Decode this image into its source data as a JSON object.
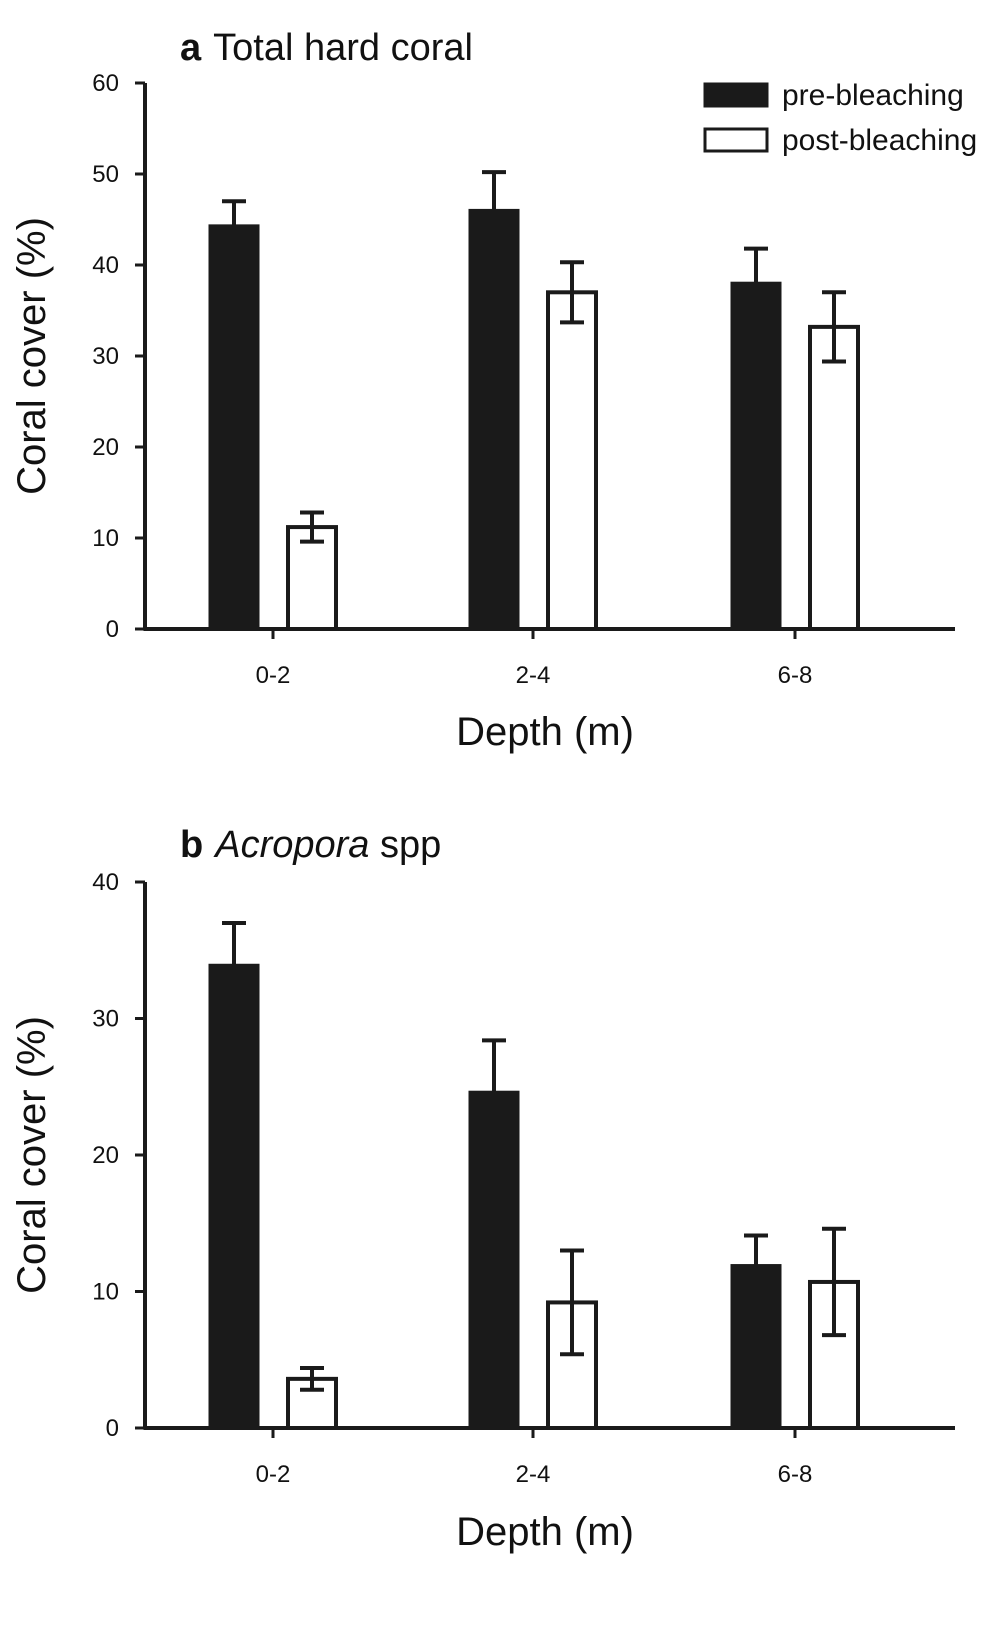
{
  "chart_data": [
    {
      "type": "bar",
      "panel_letter": "a",
      "title": "Total hard coral",
      "title_italic": "",
      "title_suffix": "",
      "xlabel": "Depth (m)",
      "ylabel": "Coral cover (%)",
      "categories": [
        "0-2",
        "2-4",
        "6-8"
      ],
      "ylim": [
        0,
        60
      ],
      "yticks": [
        0,
        10,
        20,
        30,
        40,
        50,
        60
      ],
      "grid": false,
      "legend_placement": "top-right",
      "series": [
        {
          "name": "pre-bleaching",
          "fill": "#1a1a1a",
          "values": [
            44.3,
            46.0,
            38.0
          ],
          "errors": [
            2.7,
            4.2,
            3.8
          ]
        },
        {
          "name": "post-bleaching",
          "fill": "#ffffff",
          "values": [
            11.2,
            37.0,
            33.2
          ],
          "errors": [
            1.6,
            3.3,
            3.8
          ]
        }
      ]
    },
    {
      "type": "bar",
      "panel_letter": "b",
      "title": "",
      "title_italic": "Acropora",
      "title_suffix": " spp",
      "xlabel": "Depth (m)",
      "ylabel": "Coral cover (%)",
      "categories": [
        "0-2",
        "2-4",
        "6-8"
      ],
      "ylim": [
        0,
        40
      ],
      "yticks": [
        0,
        10,
        20,
        30,
        40
      ],
      "grid": false,
      "legend_placement": "none",
      "series": [
        {
          "name": "pre-bleaching",
          "fill": "#1a1a1a",
          "values": [
            33.9,
            24.6,
            11.9
          ],
          "errors": [
            3.1,
            3.8,
            2.2
          ]
        },
        {
          "name": "post-bleaching",
          "fill": "#ffffff",
          "values": [
            3.6,
            9.2,
            10.7
          ],
          "errors": [
            0.8,
            3.8,
            3.9
          ]
        }
      ]
    }
  ]
}
